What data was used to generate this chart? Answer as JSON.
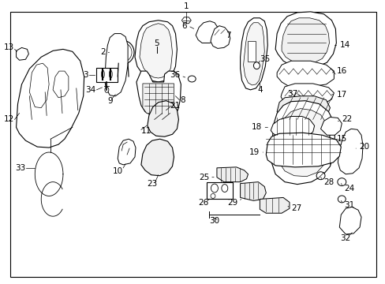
{
  "bg_color": "#ffffff",
  "border_color": "#000000",
  "line_color": "#000000",
  "text_color": "#000000",
  "fig_width": 4.89,
  "fig_height": 3.6,
  "dpi": 100,
  "font_size": 7.5
}
